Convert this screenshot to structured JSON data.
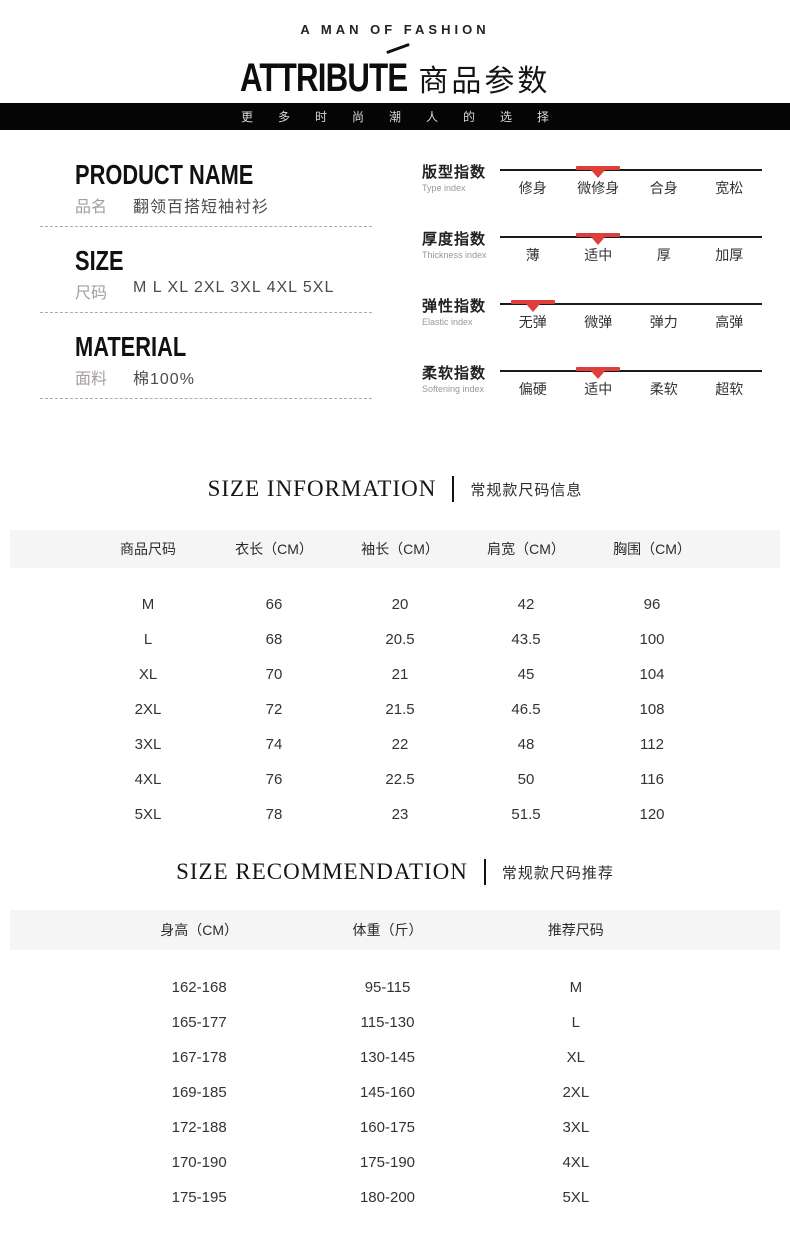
{
  "header": {
    "tagline": "A MAN OF FASHION",
    "title_en": "ATTRIBUTE",
    "title_zh": "商品参数",
    "banner": "更多时尚潮人的选择"
  },
  "attributes": {
    "fields": [
      {
        "heading": "PRODUCT NAME",
        "label": "品名",
        "value": "翻领百搭短袖衬衫"
      },
      {
        "heading": "SIZE",
        "label": "尺码",
        "value": "M L XL 2XL 3XL 4XL 5XL"
      },
      {
        "heading": "MATERIAL",
        "label": "面料",
        "value": "棉100%"
      }
    ],
    "scales": [
      {
        "title": "版型指数",
        "subtitle": "Type index",
        "options": [
          "修身",
          "微修身",
          "合身",
          "宽松"
        ],
        "selected": 1
      },
      {
        "title": "厚度指数",
        "subtitle": "Thickness index",
        "options": [
          "薄",
          "适中",
          "厚",
          "加厚"
        ],
        "selected": 1
      },
      {
        "title": "弹性指数",
        "subtitle": "Elastic index",
        "options": [
          "无弹",
          "微弹",
          "弹力",
          "高弹"
        ],
        "selected": 0
      },
      {
        "title": "柔软指数",
        "subtitle": "Softening index",
        "options": [
          "偏硬",
          "适中",
          "柔软",
          "超软"
        ],
        "selected": 1
      }
    ]
  },
  "size_information": {
    "title_en": "SIZE INFORMATION",
    "title_zh": "常规款尺码信息",
    "columns": [
      "商品尺码",
      "衣长（CM）",
      "袖长（CM）",
      "肩宽（CM）",
      "胸围（CM）"
    ],
    "rows": [
      [
        "M",
        "66",
        "20",
        "42",
        "96"
      ],
      [
        "L",
        "68",
        "20.5",
        "43.5",
        "100"
      ],
      [
        "XL",
        "70",
        "21",
        "45",
        "104"
      ],
      [
        "2XL",
        "72",
        "21.5",
        "46.5",
        "108"
      ],
      [
        "3XL",
        "74",
        "22",
        "48",
        "112"
      ],
      [
        "4XL",
        "76",
        "22.5",
        "50",
        "116"
      ],
      [
        "5XL",
        "78",
        "23",
        "51.5",
        "120"
      ]
    ]
  },
  "size_recommendation": {
    "title_en": "SIZE RECOMMENDATION",
    "title_zh": "常规款尺码推荐",
    "columns": [
      "身高（CM）",
      "体重（斤）",
      "推荐尺码"
    ],
    "rows": [
      [
        "162-168",
        "95-115",
        "M"
      ],
      [
        "165-177",
        "115-130",
        "L"
      ],
      [
        "167-178",
        "130-145",
        "XL"
      ],
      [
        "169-185",
        "145-160",
        "2XL"
      ],
      [
        "172-188",
        "160-175",
        "3XL"
      ],
      [
        "170-190",
        "175-190",
        "4XL"
      ],
      [
        "175-195",
        "180-200",
        "5XL"
      ]
    ]
  },
  "colors": {
    "accent_red": "#df3f3a",
    "banner_bg": "#050505",
    "table_header_bg": "#f5f5f5"
  }
}
